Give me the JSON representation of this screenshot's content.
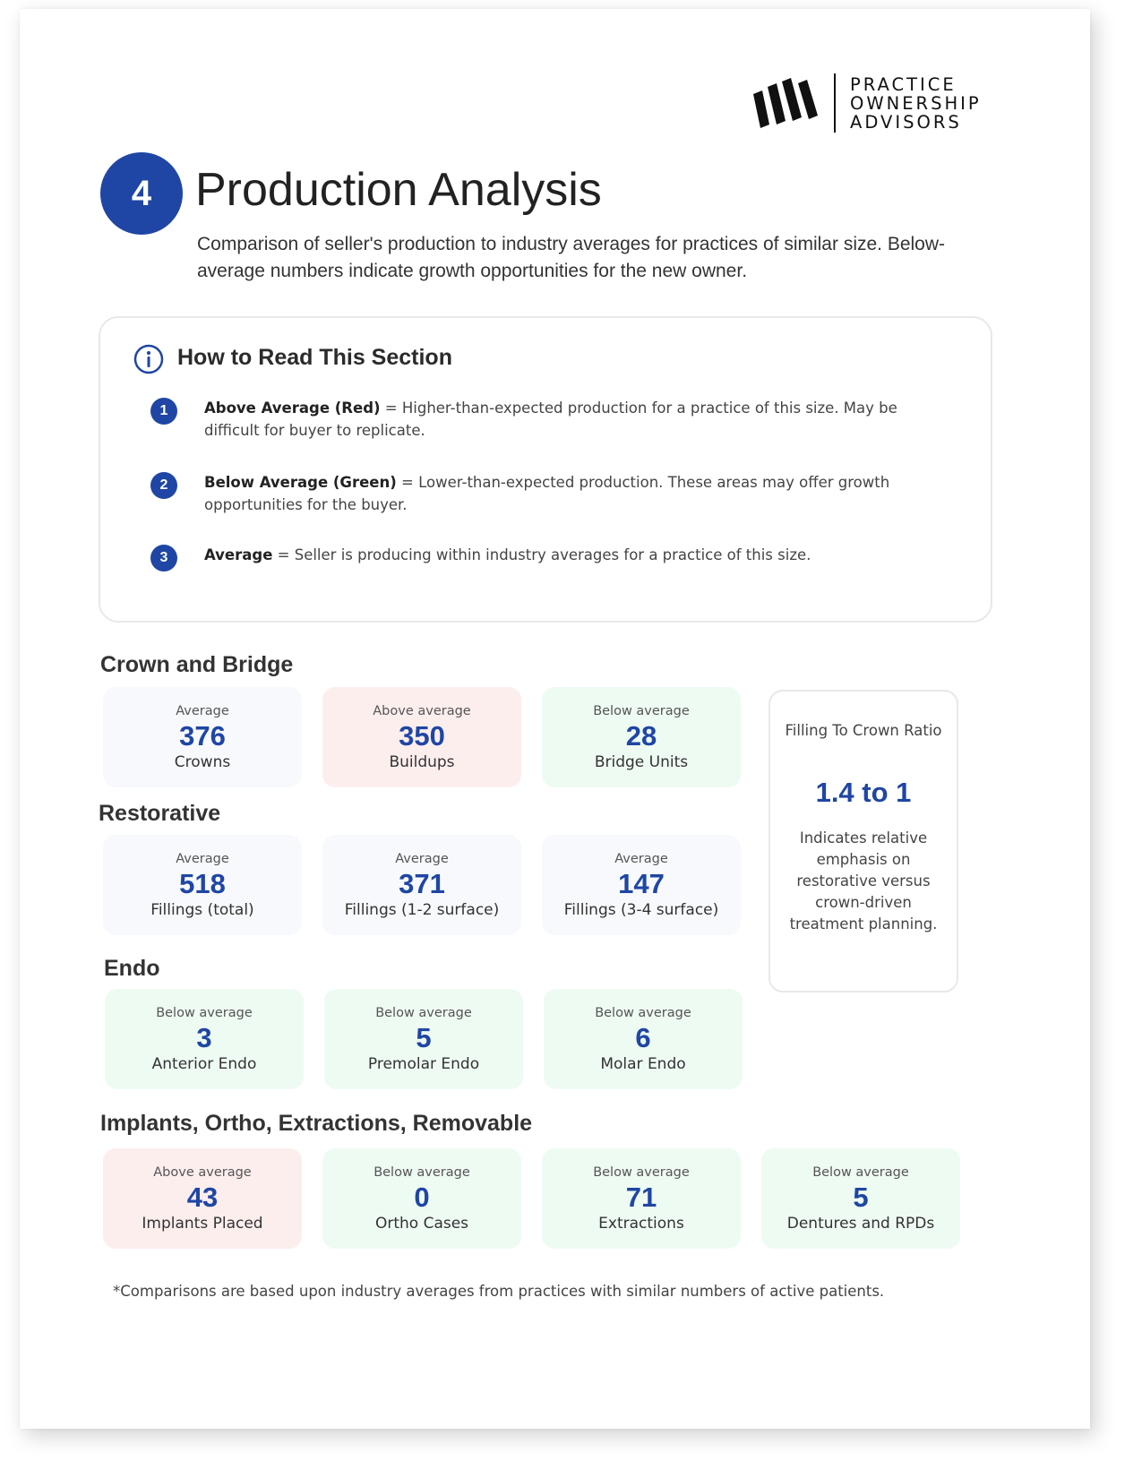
{
  "logo": {
    "line1": "PRACTICE",
    "line2": "OWNERSHIP",
    "line3": "ADVISORS"
  },
  "header": {
    "step_number": "4",
    "title": "Production Analysis",
    "subtitle": "Comparison of seller's production to industry averages for practices of similar size. Below-average numbers indicate growth opportunities for the new owner."
  },
  "how_to_read": {
    "title": "How to Read This Section",
    "items": [
      {
        "number": "1",
        "term": "Above Average (Red)",
        "text": " = Higher-than-expected production for a practice of this size. May be difficult for buyer to replicate."
      },
      {
        "number": "2",
        "term": "Below Average (Green)",
        "text": " = Lower-than-expected production. These areas may offer growth opportunities for the buyer."
      },
      {
        "number": "3",
        "term": "Average",
        "text": " = Seller is producing within industry averages for a practice of this size."
      }
    ]
  },
  "sections": [
    {
      "title": "Crown and Bridge",
      "cards": [
        {
          "status": "Average",
          "value": "376",
          "label": "Crowns",
          "tone": "avg"
        },
        {
          "status": "Above average",
          "value": "350",
          "label": "Buildups",
          "tone": "above"
        },
        {
          "status": "Below average",
          "value": "28",
          "label": "Bridge Units",
          "tone": "below"
        }
      ]
    },
    {
      "title": "Restorative",
      "cards": [
        {
          "status": "Average",
          "value": "518",
          "label": "Fillings (total)",
          "tone": "avg"
        },
        {
          "status": "Average",
          "value": "371",
          "label": "Fillings (1-2 surface)",
          "tone": "avg"
        },
        {
          "status": "Average",
          "value": "147",
          "label": "Fillings (3-4 surface)",
          "tone": "avg"
        }
      ]
    },
    {
      "title": "Endo",
      "cards": [
        {
          "status": "Below average",
          "value": "3",
          "label": "Anterior Endo",
          "tone": "below"
        },
        {
          "status": "Below average",
          "value": "5",
          "label": "Premolar Endo",
          "tone": "below"
        },
        {
          "status": "Below average",
          "value": "6",
          "label": "Molar Endo",
          "tone": "below"
        }
      ]
    },
    {
      "title": "Implants, Ortho, Extractions, Removable",
      "cards": [
        {
          "status": "Above average",
          "value": "43",
          "label": "Implants Placed",
          "tone": "above"
        },
        {
          "status": "Below average",
          "value": "0",
          "label": "Ortho Cases",
          "tone": "below"
        },
        {
          "status": "Below average",
          "value": "71",
          "label": "Extractions",
          "tone": "below"
        },
        {
          "status": "Below average",
          "value": "5",
          "label": "Dentures and RPDs",
          "tone": "below"
        }
      ]
    }
  ],
  "ratio": {
    "title": "Filling To Crown Ratio",
    "value": "1.4 to 1",
    "description": "Indicates relative emphasis on restorative versus crown-driven treatment planning."
  },
  "footnote": "*Comparisons are based upon industry averages from practices with similar numbers of active patients.",
  "colors": {
    "accent": "#1f46a4",
    "average_card": "#f7f9fc",
    "above_card": "#fdeeee",
    "below_card": "#eefbf3"
  }
}
